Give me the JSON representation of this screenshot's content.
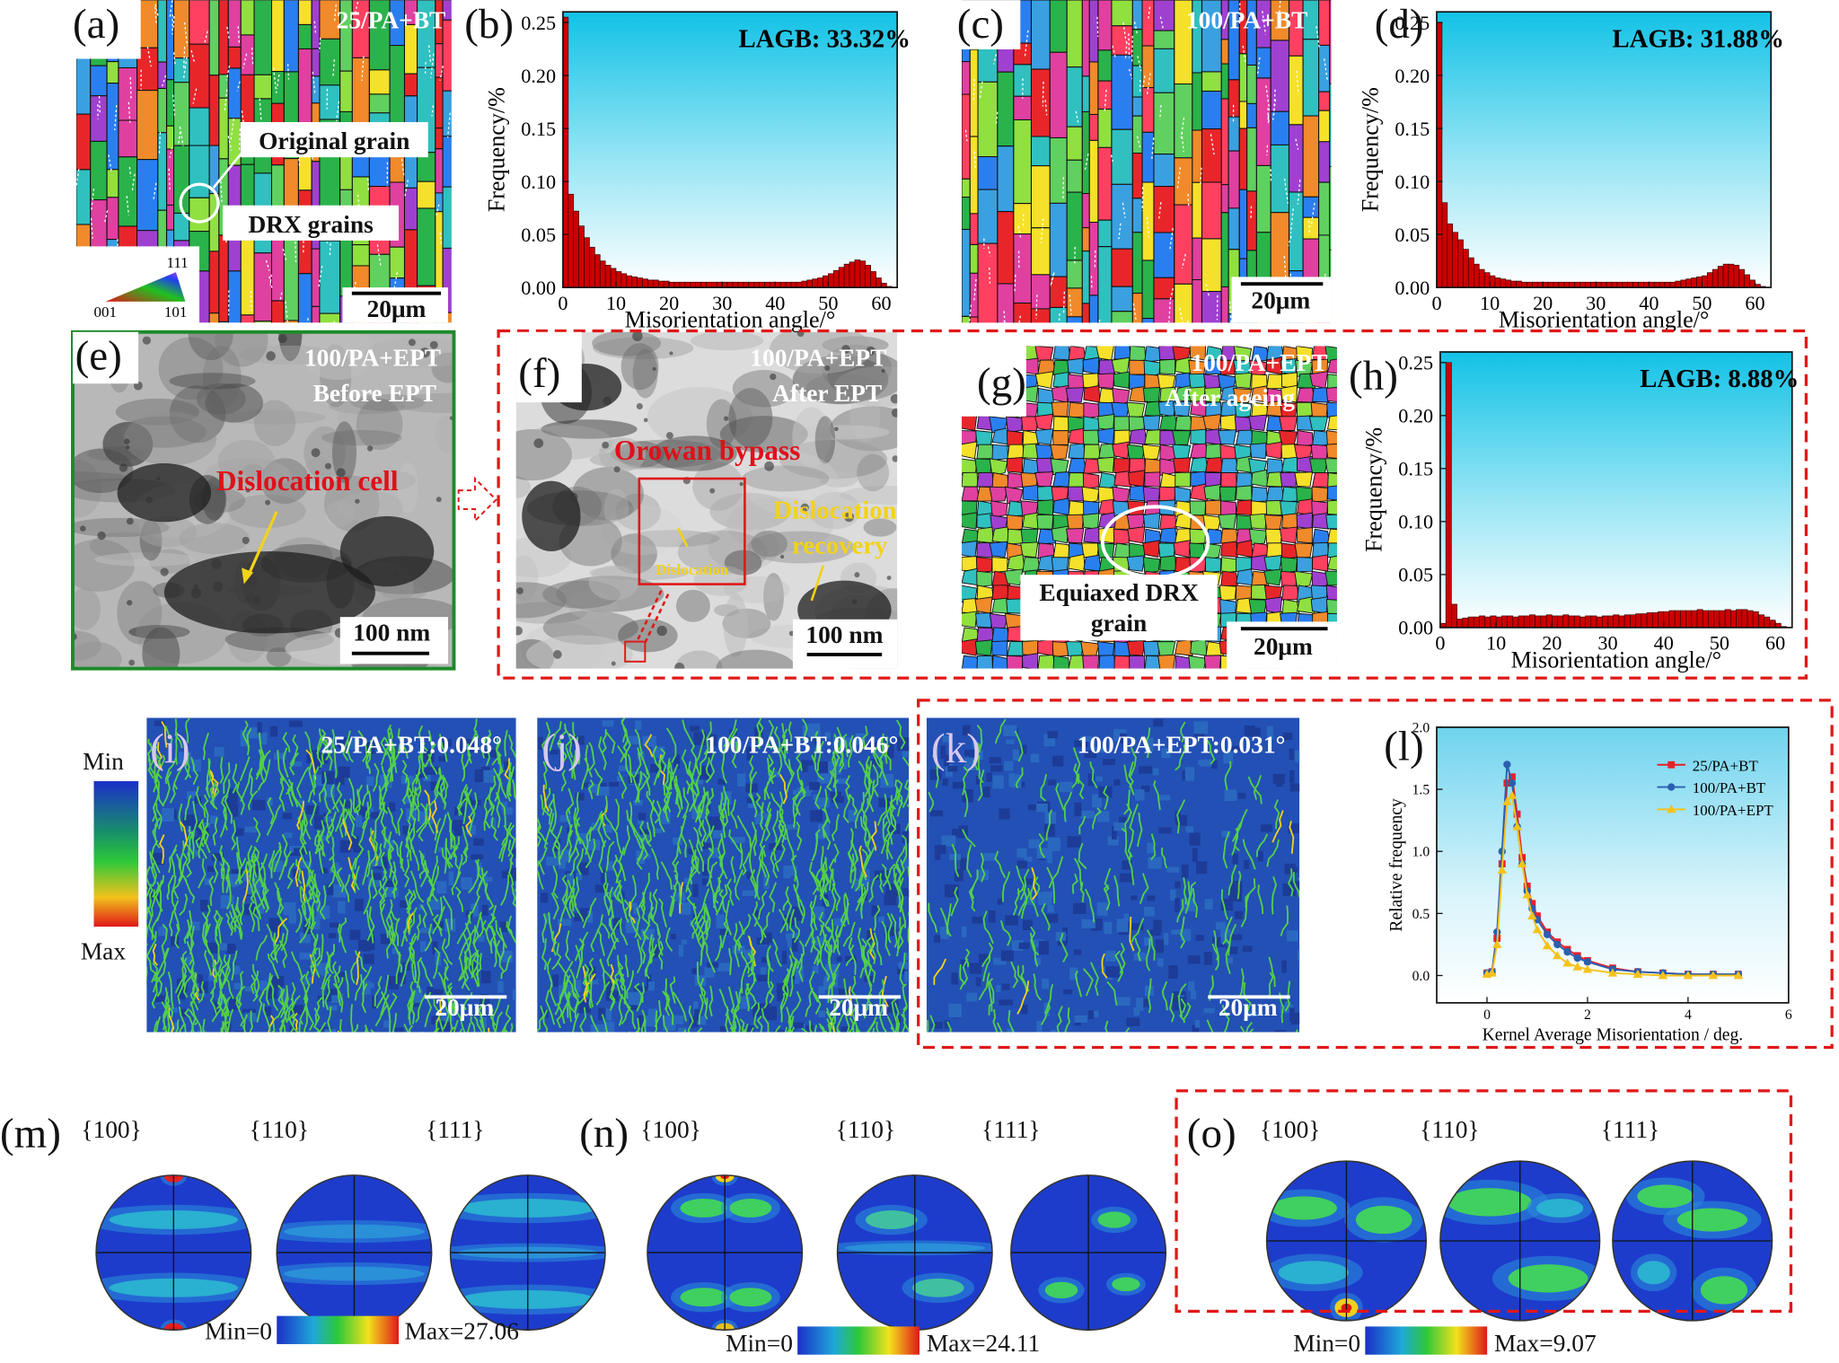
{
  "chart_data": [
    {
      "type": "histogram",
      "panel_label": "(b)",
      "annotation": "LAGB: 33.32%",
      "x_label": "Misorientation angle/°",
      "y_label": "Frequency/%",
      "color": "#cc0000",
      "bins": [
        0,
        1,
        2,
        3,
        4,
        5,
        6,
        7,
        8,
        9,
        10,
        11,
        12,
        13,
        14,
        15,
        16,
        17,
        18,
        19,
        20,
        21,
        22,
        23,
        24,
        25,
        26,
        27,
        28,
        29,
        30,
        31,
        32,
        33,
        34,
        35,
        36,
        37,
        38,
        39,
        40,
        41,
        42,
        43,
        44,
        45,
        46,
        47,
        48,
        49,
        50,
        51,
        52,
        53,
        54,
        55,
        56,
        57,
        58,
        59,
        60,
        61,
        62
      ],
      "values": [
        0.255,
        0.088,
        0.072,
        0.058,
        0.047,
        0.038,
        0.031,
        0.025,
        0.021,
        0.018,
        0.015,
        0.013,
        0.011,
        0.01,
        0.009,
        0.008,
        0.007,
        0.007,
        0.006,
        0.006,
        0.005,
        0.005,
        0.005,
        0.005,
        0.005,
        0.005,
        0.005,
        0.005,
        0.005,
        0.005,
        0.005,
        0.005,
        0.005,
        0.005,
        0.005,
        0.005,
        0.005,
        0.005,
        0.005,
        0.005,
        0.005,
        0.005,
        0.005,
        0.005,
        0.005,
        0.006,
        0.007,
        0.008,
        0.009,
        0.011,
        0.013,
        0.016,
        0.019,
        0.022,
        0.024,
        0.026,
        0.025,
        0.021,
        0.015,
        0.009,
        0.004,
        0.001
      ],
      "xlim": [
        0,
        63
      ],
      "ylim": [
        0,
        0.26
      ],
      "xticks": [
        0,
        10,
        20,
        30,
        40,
        50,
        60
      ],
      "yticks": [
        {
          "value": 0,
          "label": "0.00"
        },
        {
          "value": 0.05,
          "label": "0.05"
        },
        {
          "value": 0.1,
          "label": "0.10"
        },
        {
          "value": 0.15,
          "label": "0.15"
        },
        {
          "value": 0.2,
          "label": "0.20"
        },
        {
          "value": 0.25,
          "label": "0.25"
        }
      ]
    },
    {
      "type": "histogram",
      "panel_label": "(d)",
      "annotation": "LAGB: 31.88%",
      "x_label": "Misorientation angle/°",
      "y_label": "Frequency/%",
      "color": "#cc0000",
      "bins": [
        0,
        1,
        2,
        3,
        4,
        5,
        6,
        7,
        8,
        9,
        10,
        11,
        12,
        13,
        14,
        15,
        16,
        17,
        18,
        19,
        20,
        21,
        22,
        23,
        24,
        25,
        26,
        27,
        28,
        29,
        30,
        31,
        32,
        33,
        34,
        35,
        36,
        37,
        38,
        39,
        40,
        41,
        42,
        43,
        44,
        45,
        46,
        47,
        48,
        49,
        50,
        51,
        52,
        53,
        54,
        55,
        56,
        57,
        58,
        59,
        60,
        61,
        62
      ],
      "values": [
        0.25,
        0.08,
        0.06,
        0.052,
        0.045,
        0.036,
        0.028,
        0.022,
        0.017,
        0.014,
        0.011,
        0.009,
        0.008,
        0.007,
        0.006,
        0.006,
        0.005,
        0.005,
        0.005,
        0.005,
        0.005,
        0.005,
        0.005,
        0.005,
        0.005,
        0.005,
        0.005,
        0.005,
        0.005,
        0.005,
        0.005,
        0.005,
        0.005,
        0.005,
        0.005,
        0.005,
        0.005,
        0.005,
        0.005,
        0.005,
        0.005,
        0.005,
        0.005,
        0.005,
        0.005,
        0.006,
        0.007,
        0.008,
        0.009,
        0.01,
        0.011,
        0.014,
        0.017,
        0.02,
        0.022,
        0.022,
        0.021,
        0.017,
        0.012,
        0.007,
        0.003,
        0.001
      ],
      "xlim": [
        0,
        63
      ],
      "ylim": [
        0,
        0.26
      ],
      "xticks": [
        0,
        10,
        20,
        30,
        40,
        50,
        60
      ],
      "yticks": [
        {
          "value": 0,
          "label": "0.00"
        },
        {
          "value": 0.05,
          "label": "0.05"
        },
        {
          "value": 0.1,
          "label": "0.10"
        },
        {
          "value": 0.15,
          "label": "0.15"
        },
        {
          "value": 0.2,
          "label": "0.20"
        },
        {
          "value": 0.25,
          "label": "0.25"
        }
      ]
    },
    {
      "type": "histogram",
      "panel_label": "(h)",
      "annotation": "LAGB: 8.88%",
      "x_label": "Misorientation angle/°",
      "y_label": "Frequency/%",
      "color": "#cc0000",
      "bins": [
        0,
        1,
        2,
        3,
        4,
        5,
        6,
        7,
        8,
        9,
        10,
        11,
        12,
        13,
        14,
        15,
        16,
        17,
        18,
        19,
        20,
        21,
        22,
        23,
        24,
        25,
        26,
        27,
        28,
        29,
        30,
        31,
        32,
        33,
        34,
        35,
        36,
        37,
        38,
        39,
        40,
        41,
        42,
        43,
        44,
        45,
        46,
        47,
        48,
        49,
        50,
        51,
        52,
        53,
        54,
        55,
        56,
        57,
        58,
        59,
        60,
        61,
        62
      ],
      "values": [
        0.004,
        0.25,
        0.022,
        0.008,
        0.009,
        0.01,
        0.01,
        0.011,
        0.01,
        0.011,
        0.01,
        0.011,
        0.011,
        0.01,
        0.011,
        0.011,
        0.012,
        0.011,
        0.011,
        0.012,
        0.011,
        0.011,
        0.012,
        0.011,
        0.011,
        0.01,
        0.011,
        0.011,
        0.01,
        0.011,
        0.011,
        0.012,
        0.011,
        0.012,
        0.012,
        0.013,
        0.013,
        0.014,
        0.014,
        0.015,
        0.015,
        0.016,
        0.016,
        0.016,
        0.016,
        0.016,
        0.017,
        0.016,
        0.016,
        0.016,
        0.016,
        0.017,
        0.016,
        0.017,
        0.017,
        0.016,
        0.015,
        0.012,
        0.01,
        0.007,
        0.004,
        0.001
      ],
      "xlim": [
        0,
        63
      ],
      "ylim": [
        0,
        0.26
      ],
      "xticks": [
        0,
        10,
        20,
        30,
        40,
        50,
        60
      ],
      "yticks": [
        {
          "value": 0,
          "label": "0.00"
        },
        {
          "value": 0.05,
          "label": "0.05"
        },
        {
          "value": 0.1,
          "label": "0.10"
        },
        {
          "value": 0.15,
          "label": "0.15"
        },
        {
          "value": 0.2,
          "label": "0.20"
        },
        {
          "value": 0.25,
          "label": "0.25"
        }
      ]
    },
    {
      "type": "line",
      "panel_label": "(l)",
      "x_label": "Kernel Average Misorientation / deg.",
      "y_label": "Relative frequency",
      "legend": "upper right",
      "x": [
        0,
        0.1,
        0.2,
        0.3,
        0.4,
        0.5,
        0.6,
        0.7,
        0.8,
        0.9,
        1.0,
        1.2,
        1.4,
        1.6,
        1.8,
        2.0,
        2.5,
        3.0,
        3.5,
        4.0,
        4.5,
        5.0
      ],
      "series": [
        {
          "name": "25/PA+BT",
          "color": "#e8202a",
          "marker": "square",
          "values": [
            0.02,
            0.03,
            0.3,
            0.9,
            1.55,
            1.6,
            1.3,
            0.95,
            0.72,
            0.58,
            0.48,
            0.35,
            0.27,
            0.21,
            0.16,
            0.12,
            0.06,
            0.03,
            0.02,
            0.01,
            0.01,
            0.01
          ]
        },
        {
          "name": "100/PA+BT",
          "color": "#2a5fb0",
          "marker": "circle",
          "values": [
            0.02,
            0.03,
            0.35,
            1.0,
            1.7,
            1.55,
            1.2,
            0.9,
            0.68,
            0.54,
            0.45,
            0.33,
            0.25,
            0.19,
            0.14,
            0.11,
            0.05,
            0.03,
            0.02,
            0.01,
            0.01,
            0.01
          ]
        },
        {
          "name": "100/PA+EPT",
          "color": "#f5c21a",
          "marker": "triangle",
          "values": [
            0.01,
            0.02,
            0.25,
            0.85,
            1.4,
            1.45,
            1.2,
            0.9,
            0.65,
            0.48,
            0.37,
            0.24,
            0.16,
            0.1,
            0.07,
            0.05,
            0.02,
            0.01,
            0.0,
            0.0,
            0.0,
            0.0
          ]
        }
      ],
      "xlim": [
        -1,
        6
      ],
      "ylim": [
        -0.22,
        2.0
      ],
      "xticks": [
        0,
        2,
        4,
        6
      ],
      "yticks": [
        {
          "value": 0,
          "label": "0.0"
        },
        {
          "value": 0.5,
          "label": "0.5"
        },
        {
          "value": 1,
          "label": "1.0"
        },
        {
          "value": 1.5,
          "label": "1.5"
        },
        {
          "value": 2,
          "label": "2.0"
        }
      ]
    }
  ],
  "panels": {
    "a": {
      "label": "(a)",
      "sample": "25/PA+BT",
      "notes": [
        "Original grain",
        "DRX  grains"
      ],
      "ipf": [
        "001",
        "101",
        "111"
      ],
      "scale": "20μm"
    },
    "c": {
      "label": "(c)",
      "sample": "100/PA+BT",
      "scale": "20μm"
    },
    "e": {
      "label": "(e)",
      "sample": [
        "100/PA+EPT",
        "Before EPT"
      ],
      "note": "Dislocation cell",
      "scale": "100 nm"
    },
    "f": {
      "label": "(f)",
      "sample": [
        "100/PA+EPT",
        "After EPT"
      ],
      "note": "Orowan bypass",
      "inset": "Dislocation",
      "recovery": [
        "Dislocation",
        "recovery"
      ],
      "scale": "100 nm"
    },
    "g": {
      "label": "(g)",
      "sample": [
        "100/PA+EPT",
        "After ageing"
      ],
      "note": [
        "Equiaxed DRX",
        "grain"
      ],
      "scale": "20μm"
    },
    "kam_scale": {
      "min": "Min",
      "max": "Max"
    },
    "i": {
      "label": "(i)",
      "sample": "25/PA+BT:0.048°",
      "scale": "20μm"
    },
    "j": {
      "label": "(j)",
      "sample": "100/PA+BT:0.046°",
      "scale": "20μm"
    },
    "k": {
      "label": "(k)",
      "sample": "100/PA+EPT:0.031°",
      "scale": "20μm"
    },
    "m": {
      "label": "(m)",
      "planes": [
        "{100}",
        "{110}",
        "{111}"
      ],
      "min": "Min=0",
      "max": "Max=27.06"
    },
    "n": {
      "label": "(n)",
      "planes": [
        "{100}",
        "{110}",
        "{111}"
      ],
      "min": "Min=0",
      "max": "Max=24.11"
    },
    "o": {
      "label": "(o)",
      "planes": [
        "{100}",
        "{110}",
        "{111}"
      ],
      "min": "Min=0",
      "max": "Max=9.07"
    }
  }
}
